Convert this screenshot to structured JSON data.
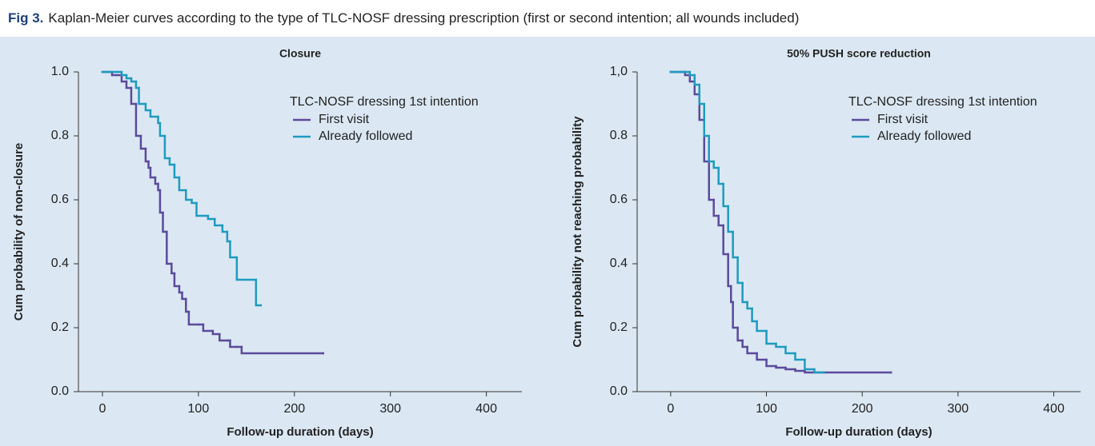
{
  "caption": {
    "label": "Fig 3.",
    "text": "Kaplan-Meier curves according to the type of TLC-NOSF dressing prescription (first or second intention; all wounds included)"
  },
  "chart_data": [
    {
      "type": "step",
      "title": "Closure",
      "xlabel": "Follow-up duration (days)",
      "ylabel": "Cum probability of non-closure",
      "legend_title": "TLC-NOSF dressing 1st intention",
      "legend": "upper right",
      "grid": false,
      "xlim": [
        -25,
        437
      ],
      "ylim": [
        0,
        1
      ],
      "xticks": [
        0,
        100,
        200,
        300,
        400
      ],
      "yticks": [
        {
          "value": 0,
          "label": "0.0"
        },
        0.2,
        0.4,
        0.6,
        0.8,
        {
          "value": 1,
          "label": "1.0"
        }
      ],
      "series": [
        {
          "name": "First visit",
          "color": "#5b4a9b",
          "x": [
            0,
            10,
            20,
            25,
            30,
            35,
            40,
            45,
            48,
            50,
            55,
            58,
            60,
            63,
            67,
            72,
            75,
            80,
            83,
            87,
            90,
            100,
            105,
            115,
            122,
            130,
            133,
            140,
            145,
            230
          ],
          "values": [
            1.0,
            0.99,
            0.97,
            0.95,
            0.9,
            0.8,
            0.76,
            0.72,
            0.7,
            0.67,
            0.65,
            0.63,
            0.56,
            0.5,
            0.4,
            0.37,
            0.33,
            0.31,
            0.29,
            0.25,
            0.21,
            0.21,
            0.19,
            0.18,
            0.16,
            0.16,
            0.14,
            0.14,
            0.12,
            0.12
          ]
        },
        {
          "name": "Already followed",
          "color": "#1e9bbf",
          "x": [
            0,
            15,
            20,
            25,
            30,
            35,
            38,
            45,
            50,
            58,
            60,
            65,
            70,
            75,
            80,
            87,
            93,
            98,
            110,
            117,
            125,
            130,
            133,
            140,
            160,
            165
          ],
          "values": [
            1.0,
            1.0,
            0.99,
            0.98,
            0.97,
            0.95,
            0.9,
            0.88,
            0.86,
            0.84,
            0.8,
            0.73,
            0.71,
            0.67,
            0.63,
            0.6,
            0.59,
            0.55,
            0.54,
            0.52,
            0.5,
            0.47,
            0.42,
            0.35,
            0.27,
            0.27
          ]
        }
      ]
    },
    {
      "type": "step",
      "title": "50% PUSH score reduction",
      "xlabel": "Follow-up duration (days)",
      "ylabel": "Cum probability not reaching probability",
      "legend_title": "TLC-NOSF dressing 1st intention",
      "legend": "upper right",
      "grid": false,
      "xlim": [
        -35,
        428
      ],
      "ylim": [
        0,
        1
      ],
      "xticks": [
        0,
        100,
        200,
        300,
        400
      ],
      "yticks": [
        {
          "value": 0,
          "label": "0.0"
        },
        0.2,
        0.4,
        0.6,
        0.8,
        {
          "value": 1,
          "label": "1,0"
        }
      ],
      "series": [
        {
          "name": "First visit",
          "color": "#5b4a9b",
          "x": [
            0,
            10,
            15,
            20,
            25,
            30,
            35,
            40,
            45,
            50,
            55,
            60,
            63,
            65,
            70,
            75,
            80,
            90,
            100,
            110,
            120,
            130,
            140,
            230
          ],
          "values": [
            1.0,
            1.0,
            0.99,
            0.97,
            0.93,
            0.85,
            0.72,
            0.6,
            0.55,
            0.52,
            0.43,
            0.33,
            0.28,
            0.2,
            0.16,
            0.14,
            0.12,
            0.1,
            0.08,
            0.075,
            0.07,
            0.065,
            0.06,
            0.06
          ]
        },
        {
          "name": "Already followed",
          "color": "#1e9bbf",
          "x": [
            0,
            15,
            20,
            25,
            30,
            35,
            40,
            45,
            50,
            55,
            60,
            65,
            70,
            75,
            80,
            85,
            90,
            100,
            110,
            120,
            130,
            140,
            150,
            160
          ],
          "values": [
            1.0,
            1.0,
            0.99,
            0.96,
            0.9,
            0.8,
            0.72,
            0.7,
            0.65,
            0.58,
            0.5,
            0.42,
            0.34,
            0.28,
            0.26,
            0.22,
            0.19,
            0.15,
            0.14,
            0.12,
            0.1,
            0.07,
            0.06,
            0.06
          ]
        }
      ]
    }
  ]
}
